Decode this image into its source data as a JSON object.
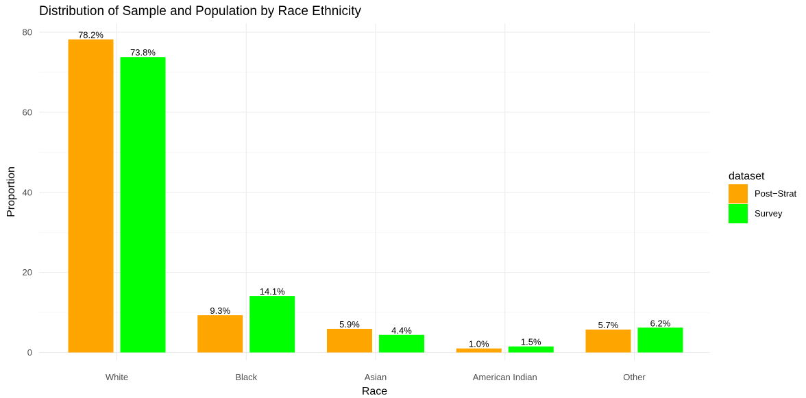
{
  "chart_data": {
    "type": "bar",
    "title": "Distribution of Sample and Population by Race Ethnicity",
    "xlabel": "Race",
    "ylabel": "Proportion",
    "categories": [
      "White",
      "Black",
      "Asian",
      "American Indian",
      "Other"
    ],
    "series": [
      {
        "name": "Post−Strat",
        "color": "#FFA500",
        "values": [
          78.2,
          9.3,
          5.9,
          1.0,
          5.7
        ],
        "labels": [
          "78.2%",
          "9.3%",
          "5.9%",
          "1.0%",
          "5.7%"
        ]
      },
      {
        "name": "Survey",
        "color": "#00FF00",
        "values": [
          73.8,
          14.1,
          4.4,
          1.5,
          6.2
        ],
        "labels": [
          "73.8%",
          "14.1%",
          "4.4%",
          "1.5%",
          "6.2%"
        ]
      }
    ],
    "ylim": [
      0,
      80
    ],
    "yticks": [
      0,
      20,
      40,
      60,
      80
    ],
    "grid": true,
    "legend": {
      "title": "dataset",
      "position": "right"
    }
  }
}
